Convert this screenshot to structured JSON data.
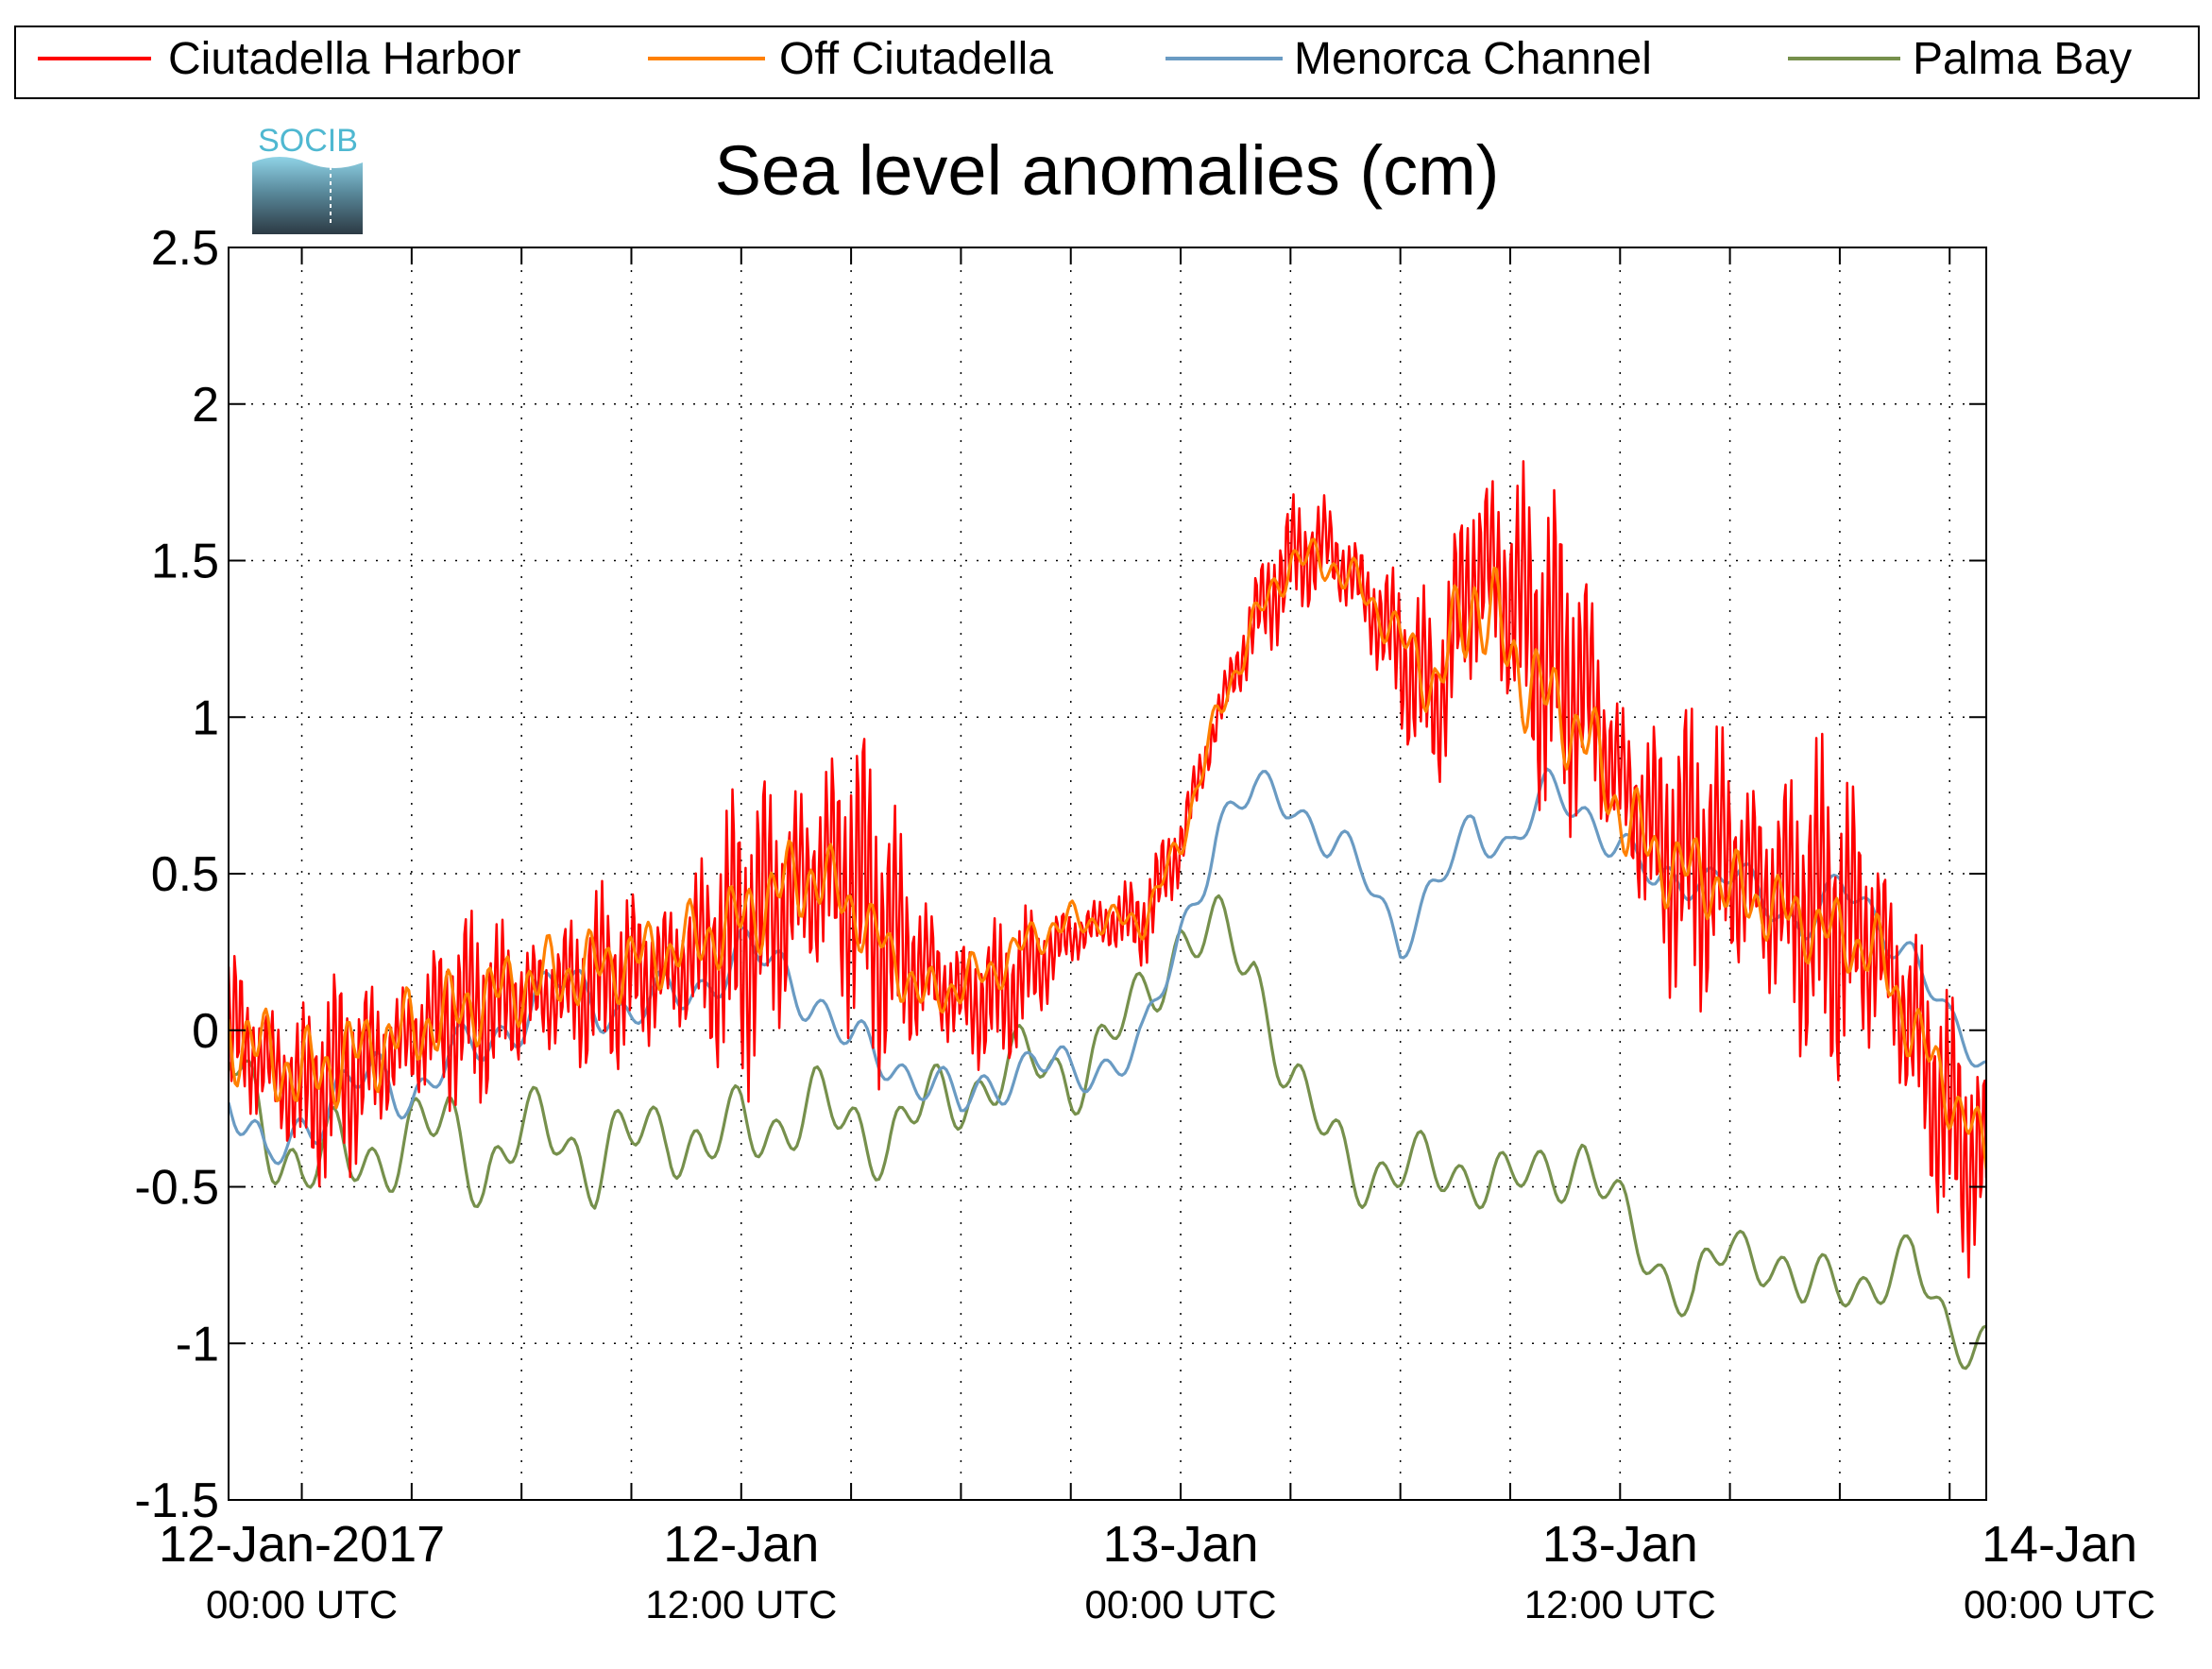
{
  "logo": {
    "text": "SOCIB"
  },
  "chart_data": {
    "type": "line",
    "title": "Sea level anomalies (cm)",
    "xlabel": "",
    "ylabel": "",
    "ylim": [
      -1.5,
      2.5
    ],
    "yticks": [
      -1.5,
      -1,
      -0.5,
      0,
      0.5,
      1,
      1.5,
      2,
      2.5
    ],
    "ytick_labels": [
      "-1.5",
      "-1",
      "-0.5",
      "0",
      "0.5",
      "1",
      "1.5",
      "2",
      "2.5"
    ],
    "xlim_hours": [
      -2,
      46
    ],
    "x_minor_ticks_hours": [
      0,
      3,
      6,
      9,
      12,
      15,
      18,
      21,
      24,
      27,
      30,
      33,
      36,
      39,
      42,
      45
    ],
    "x_labels": [
      {
        "hour": 0,
        "date": "12-Jan-2017",
        "time": "00:00 UTC"
      },
      {
        "hour": 12,
        "date": "12-Jan",
        "time": "12:00 UTC"
      },
      {
        "hour": 24,
        "date": "13-Jan",
        "time": "00:00 UTC"
      },
      {
        "hour": 36,
        "date": "13-Jan",
        "time": "12:00 UTC"
      },
      {
        "hour": 48,
        "date": "14-Jan",
        "time": "00:00 UTC"
      }
    ],
    "grid": true,
    "legend_position": "top",
    "series": [
      {
        "name": "Ciutadella Harbor",
        "color": "#ff0000",
        "anchors": [
          [
            -2,
            0.0
          ],
          [
            0,
            -0.2
          ],
          [
            2,
            -0.1
          ],
          [
            4,
            0.05
          ],
          [
            6,
            0.1
          ],
          [
            8,
            0.15
          ],
          [
            10,
            0.2
          ],
          [
            12,
            0.3
          ],
          [
            13,
            0.4
          ],
          [
            14,
            0.5
          ],
          [
            15,
            0.5
          ],
          [
            16,
            0.3
          ],
          [
            17,
            0.2
          ],
          [
            18,
            0.1
          ],
          [
            19,
            0.1
          ],
          [
            20,
            0.2
          ],
          [
            21,
            0.3
          ],
          [
            22,
            0.35
          ],
          [
            23,
            0.35
          ],
          [
            24,
            0.6
          ],
          [
            25,
            1.0
          ],
          [
            26,
            1.3
          ],
          [
            27,
            1.5
          ],
          [
            28,
            1.55
          ],
          [
            29,
            1.4
          ],
          [
            30,
            1.2
          ],
          [
            31,
            1.05
          ],
          [
            32,
            1.5
          ],
          [
            33,
            1.4
          ],
          [
            34,
            1.2
          ],
          [
            35,
            1.1
          ],
          [
            36,
            0.8
          ],
          [
            37,
            0.6
          ],
          [
            38,
            0.55
          ],
          [
            39,
            0.55
          ],
          [
            40,
            0.45
          ],
          [
            41,
            0.4
          ],
          [
            42,
            0.35
          ],
          [
            43,
            0.3
          ],
          [
            44,
            0.0
          ],
          [
            45,
            -0.3
          ],
          [
            46,
            -0.45
          ]
        ],
        "amplitude": [
          [
            -2,
            0.35
          ],
          [
            9,
            0.3
          ],
          [
            12,
            0.5
          ],
          [
            15,
            0.6
          ],
          [
            17,
            0.35
          ],
          [
            22,
            0.12
          ],
          [
            23,
            0.15
          ],
          [
            25,
            0.15
          ],
          [
            27,
            0.2
          ],
          [
            31,
            0.3
          ],
          [
            32,
            0.6
          ],
          [
            34,
            0.55
          ],
          [
            36,
            0.45
          ],
          [
            40,
            0.55
          ],
          [
            42,
            0.55
          ],
          [
            44,
            0.5
          ],
          [
            46,
            0.35
          ]
        ]
      },
      {
        "name": "Off Ciutadella",
        "color": "#ff8000",
        "anchors": [
          [
            -2,
            0.0
          ],
          [
            0,
            -0.15
          ],
          [
            2,
            -0.05
          ],
          [
            4,
            0.05
          ],
          [
            6,
            0.15
          ],
          [
            8,
            0.2
          ],
          [
            10,
            0.25
          ],
          [
            12,
            0.35
          ],
          [
            13,
            0.45
          ],
          [
            14,
            0.5
          ],
          [
            15,
            0.4
          ],
          [
            16,
            0.25
          ],
          [
            17,
            0.1
          ],
          [
            18,
            0.15
          ],
          [
            19,
            0.2
          ],
          [
            20,
            0.3
          ],
          [
            21,
            0.35
          ],
          [
            22,
            0.35
          ],
          [
            23,
            0.35
          ],
          [
            24,
            0.6
          ],
          [
            25,
            1.0
          ],
          [
            26,
            1.3
          ],
          [
            27,
            1.5
          ],
          [
            28,
            1.5
          ],
          [
            29,
            1.4
          ],
          [
            30,
            1.25
          ],
          [
            31,
            1.1
          ],
          [
            32,
            1.4
          ],
          [
            33,
            1.2
          ],
          [
            34,
            1.05
          ],
          [
            35,
            0.95
          ],
          [
            36,
            0.7
          ],
          [
            37,
            0.55
          ],
          [
            38,
            0.5
          ],
          [
            39,
            0.45
          ],
          [
            40,
            0.4
          ],
          [
            41,
            0.35
          ],
          [
            42,
            0.3
          ],
          [
            43,
            0.25
          ],
          [
            44,
            0.0
          ],
          [
            45,
            -0.2
          ],
          [
            46,
            -0.4
          ]
        ],
        "amplitude": [
          [
            -2,
            0.15
          ],
          [
            10,
            0.12
          ],
          [
            13,
            0.15
          ],
          [
            16,
            0.1
          ],
          [
            22,
            0.05
          ],
          [
            30,
            0.08
          ],
          [
            32,
            0.2
          ],
          [
            35,
            0.15
          ],
          [
            40,
            0.12
          ],
          [
            44,
            0.12
          ],
          [
            46,
            0.1
          ]
        ]
      },
      {
        "name": "Menorca Channel",
        "color": "#6a9bc3",
        "anchors": [
          [
            -2,
            -0.2
          ],
          [
            -1,
            -0.45
          ],
          [
            0,
            -0.3
          ],
          [
            1,
            -0.2
          ],
          [
            2,
            -0.15
          ],
          [
            3,
            -0.2
          ],
          [
            4,
            -0.1
          ],
          [
            5,
            -0.05
          ],
          [
            6,
            0.05
          ],
          [
            7,
            0.15
          ],
          [
            8,
            0.1
          ],
          [
            9,
            0.05
          ],
          [
            10,
            0.1
          ],
          [
            11,
            0.15
          ],
          [
            12,
            0.25
          ],
          [
            13,
            0.2
          ],
          [
            14,
            0.1
          ],
          [
            15,
            -0.05
          ],
          [
            16,
            -0.1
          ],
          [
            17,
            -0.15
          ],
          [
            18,
            -0.25
          ],
          [
            19,
            -0.15
          ],
          [
            20,
            -0.1
          ],
          [
            21,
            -0.15
          ],
          [
            22,
            -0.1
          ],
          [
            23,
            -0.05
          ],
          [
            24,
            0.3
          ],
          [
            25,
            0.65
          ],
          [
            26,
            0.75
          ],
          [
            27,
            0.75
          ],
          [
            28,
            0.6
          ],
          [
            29,
            0.5
          ],
          [
            30,
            0.3
          ],
          [
            31,
            0.45
          ],
          [
            32,
            0.65
          ],
          [
            33,
            0.6
          ],
          [
            34,
            0.75
          ],
          [
            35,
            0.7
          ],
          [
            36,
            0.6
          ],
          [
            37,
            0.45
          ],
          [
            38,
            0.5
          ],
          [
            39,
            0.5
          ],
          [
            40,
            0.4
          ],
          [
            41,
            0.35
          ],
          [
            42,
            0.45
          ],
          [
            43,
            0.35
          ],
          [
            44,
            0.25
          ],
          [
            45,
            0.0
          ],
          [
            46,
            -0.1
          ]
        ],
        "amplitude": [
          [
            -2,
            0.1
          ],
          [
            46,
            0.07
          ]
        ]
      },
      {
        "name": "Palma Bay",
        "color": "#76904c",
        "anchors": [
          [
            -2,
            -0.1
          ],
          [
            -1,
            -0.3
          ],
          [
            0,
            -0.45
          ],
          [
            1,
            -0.4
          ],
          [
            2,
            -0.4
          ],
          [
            3,
            -0.35
          ],
          [
            4,
            -0.3
          ],
          [
            5,
            -0.45
          ],
          [
            6,
            -0.35
          ],
          [
            7,
            -0.3
          ],
          [
            8,
            -0.45
          ],
          [
            9,
            -0.35
          ],
          [
            10,
            -0.3
          ],
          [
            11,
            -0.4
          ],
          [
            12,
            -0.3
          ],
          [
            13,
            -0.3
          ],
          [
            14,
            -0.25
          ],
          [
            15,
            -0.3
          ],
          [
            16,
            -0.35
          ],
          [
            17,
            -0.25
          ],
          [
            18,
            -0.2
          ],
          [
            19,
            -0.15
          ],
          [
            20,
            -0.1
          ],
          [
            21,
            -0.15
          ],
          [
            22,
            -0.05
          ],
          [
            23,
            0.1
          ],
          [
            24,
            0.3
          ],
          [
            25,
            0.3
          ],
          [
            26,
            0.2
          ],
          [
            27,
            -0.15
          ],
          [
            28,
            -0.35
          ],
          [
            29,
            -0.45
          ],
          [
            30,
            -0.45
          ],
          [
            31,
            -0.45
          ],
          [
            32,
            -0.45
          ],
          [
            33,
            -0.5
          ],
          [
            34,
            -0.45
          ],
          [
            35,
            -0.4
          ],
          [
            36,
            -0.6
          ],
          [
            37,
            -0.75
          ],
          [
            38,
            -0.85
          ],
          [
            39,
            -0.7
          ],
          [
            40,
            -0.7
          ],
          [
            41,
            -0.85
          ],
          [
            42,
            -0.8
          ],
          [
            43,
            -0.8
          ],
          [
            44,
            -0.75
          ],
          [
            45,
            -0.95
          ],
          [
            46,
            -1.0
          ]
        ],
        "amplitude": [
          [
            -2,
            0.15
          ],
          [
            46,
            0.1
          ]
        ]
      }
    ]
  }
}
